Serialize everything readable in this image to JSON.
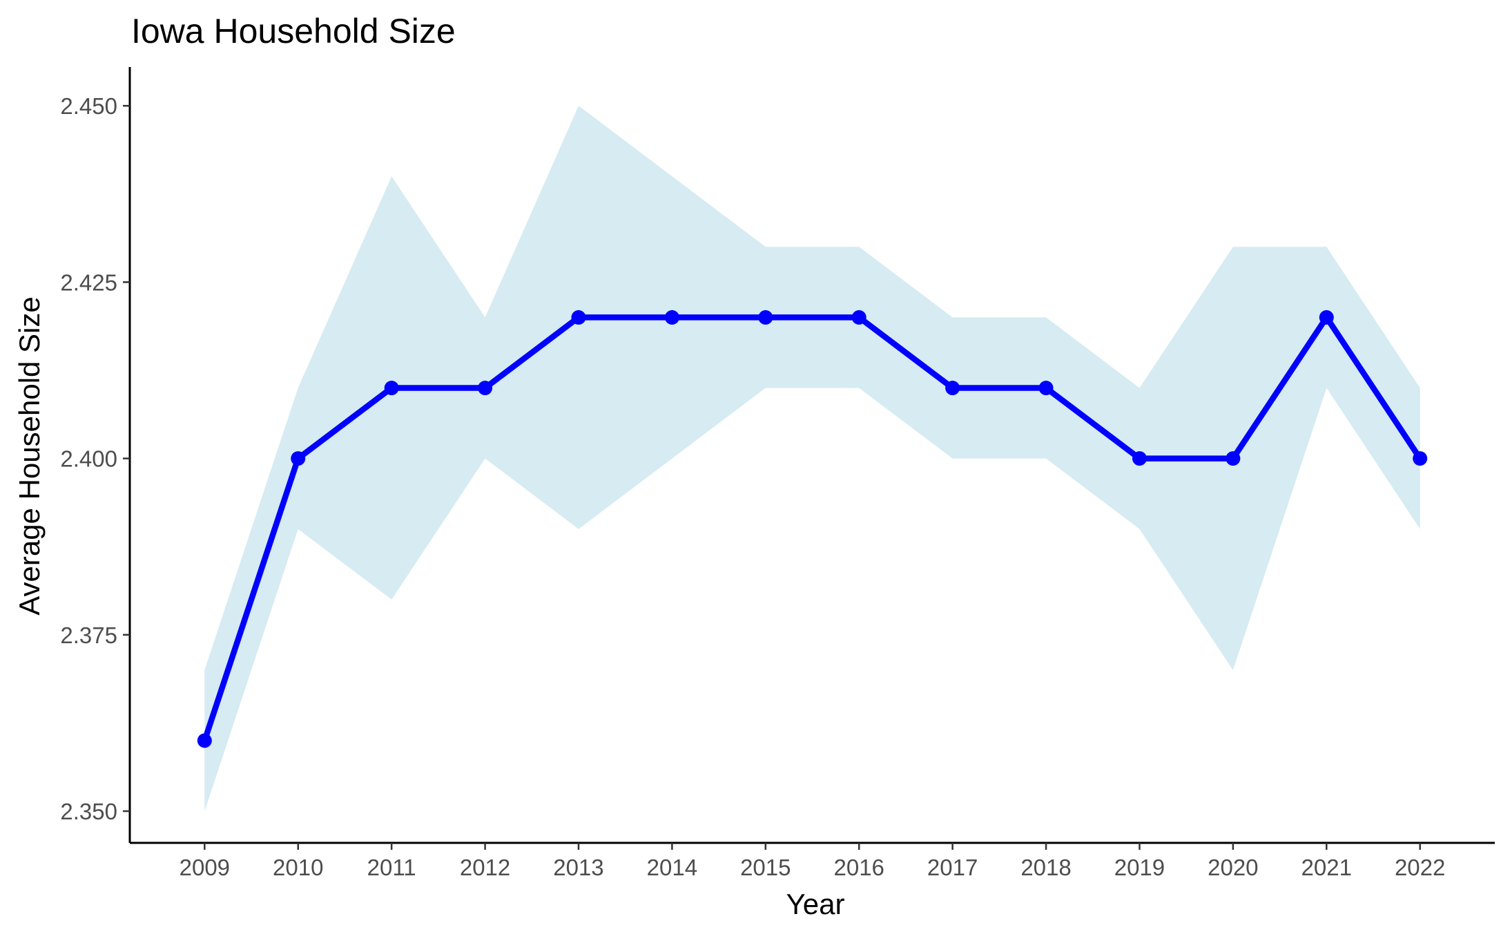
{
  "chart_data": {
    "type": "line",
    "title": "Iowa Household Size",
    "xlabel": "Year",
    "ylabel": "Average Household Size",
    "x": [
      2009,
      2010,
      2011,
      2012,
      2013,
      2014,
      2015,
      2016,
      2017,
      2018,
      2019,
      2020,
      2021,
      2022
    ],
    "x_tick_labels": [
      "2009",
      "2010",
      "2011",
      "2012",
      "2013",
      "2014",
      "2015",
      "2016",
      "2017",
      "2018",
      "2019",
      "2020",
      "2021",
      "2022"
    ],
    "series": [
      {
        "values": [
          2.36,
          2.4,
          2.41,
          2.41,
          2.42,
          2.42,
          2.42,
          2.42,
          2.41,
          2.41,
          2.4,
          2.4,
          2.42,
          2.4
        ],
        "color": "#0000ff",
        "markers": true
      }
    ],
    "band": {
      "lower": [
        2.35,
        2.39,
        2.38,
        2.4,
        2.39,
        2.4,
        2.41,
        2.41,
        2.4,
        2.4,
        2.39,
        2.37,
        2.41,
        2.39
      ],
      "upper": [
        2.37,
        2.41,
        2.44,
        2.42,
        2.45,
        2.44,
        2.43,
        2.43,
        2.42,
        2.42,
        2.41,
        2.43,
        2.43,
        2.41
      ],
      "color": "#add8e6"
    },
    "y_ticks": [
      2.35,
      2.375,
      2.4,
      2.425,
      2.45
    ],
    "y_tick_labels": [
      "2.350",
      "2.375",
      "2.400",
      "2.425",
      "2.450"
    ],
    "xlim": [
      2008.2,
      2022.8
    ],
    "ylim": [
      2.3455,
      2.4555
    ],
    "grid": false,
    "legend": "none"
  }
}
